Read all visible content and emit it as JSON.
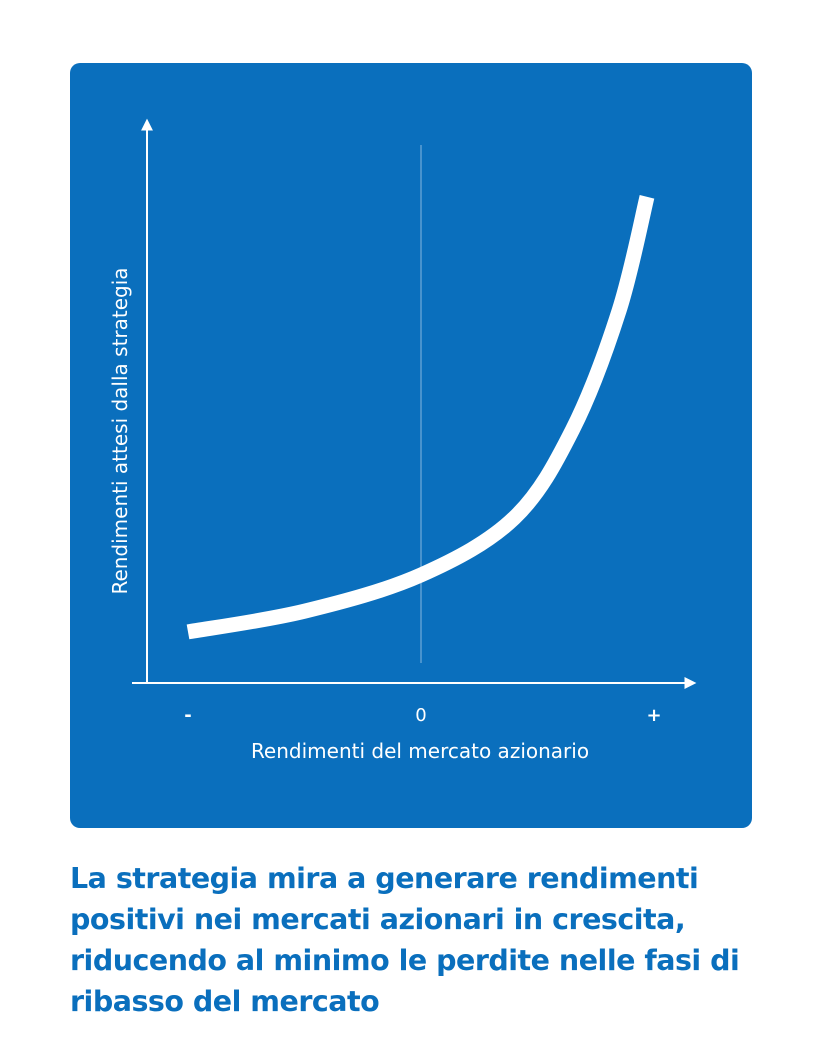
{
  "chart_data": {
    "type": "line",
    "xlabel": "Rendimenti del mercato azionario",
    "ylabel": "Rendimenti attesi dalla strategia",
    "x_tick_labels": [
      "-",
      "0",
      "+"
    ],
    "series": [
      {
        "points": [
          [
            -1,
            0.06
          ],
          [
            -0.5,
            0.1
          ],
          [
            0,
            0.17
          ],
          [
            0.4,
            0.28
          ],
          [
            0.65,
            0.45
          ],
          [
            0.85,
            0.68
          ],
          [
            0.97,
            0.9
          ]
        ]
      }
    ],
    "xlim": [
      -1,
      1
    ],
    "ylim": [
      0,
      1
    ],
    "grid": false,
    "colors": {
      "background": "#0a6fbd",
      "line": "#ffffff"
    }
  },
  "caption": "La strategia mira a generare rendimenti positivi nei mercati azionari in crescita, riducendo al minimo le perdite nelle fasi di ribasso del mercato"
}
